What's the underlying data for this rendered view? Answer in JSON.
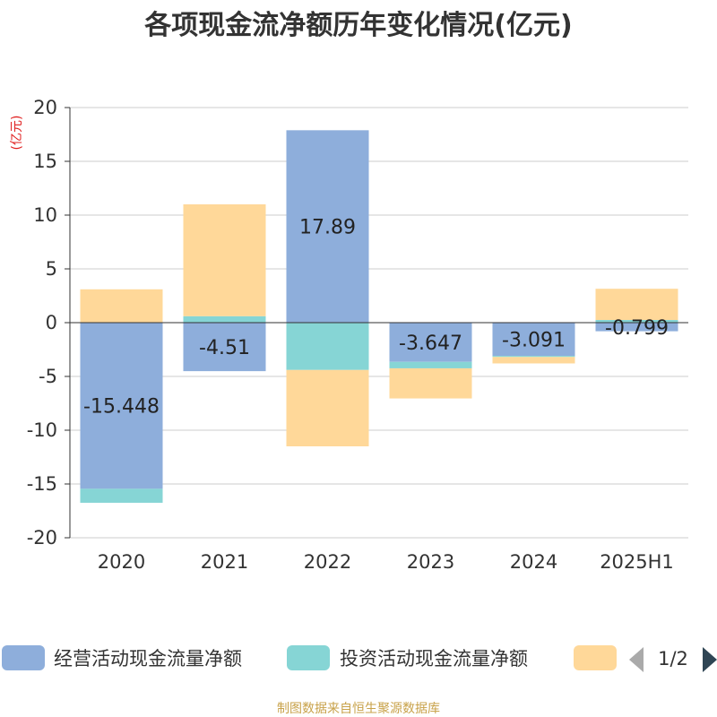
{
  "chart_data": {
    "type": "bar",
    "stacked": true,
    "title": "各项现金流净额历年变化情况(亿元)",
    "ylabel": "(亿元)",
    "xlabel": "",
    "categories": [
      "2020",
      "2021",
      "2022",
      "2023",
      "2024",
      "2025H1"
    ],
    "ylim": [
      -20,
      20
    ],
    "yticks": [
      20,
      15,
      10,
      5,
      0,
      -5,
      -10,
      -15,
      -20
    ],
    "grid": true,
    "legend_position": "bottom",
    "series": [
      {
        "name": "经营活动现金流量净额",
        "color": "#8eaedb",
        "values": [
          -15.448,
          -4.51,
          17.89,
          -3.647,
          -3.091,
          -0.799
        ]
      },
      {
        "name": "投资活动现金流量净额",
        "color": "#86d5d5",
        "values": [
          -1.3,
          0.6,
          -4.4,
          -0.6,
          -0.1,
          0.25
        ]
      },
      {
        "name": "",
        "color": "#ffd899",
        "values": [
          3.1,
          10.4,
          -7.1,
          -2.8,
          -0.6,
          2.9
        ]
      }
    ],
    "data_labels": [
      "-15.448",
      "-4.51",
      "17.89",
      "-3.647",
      "-3.091",
      "-0.799"
    ]
  },
  "legend": {
    "page_indicator": "1/2"
  },
  "source": "制图数据来自恒生聚源数据库"
}
